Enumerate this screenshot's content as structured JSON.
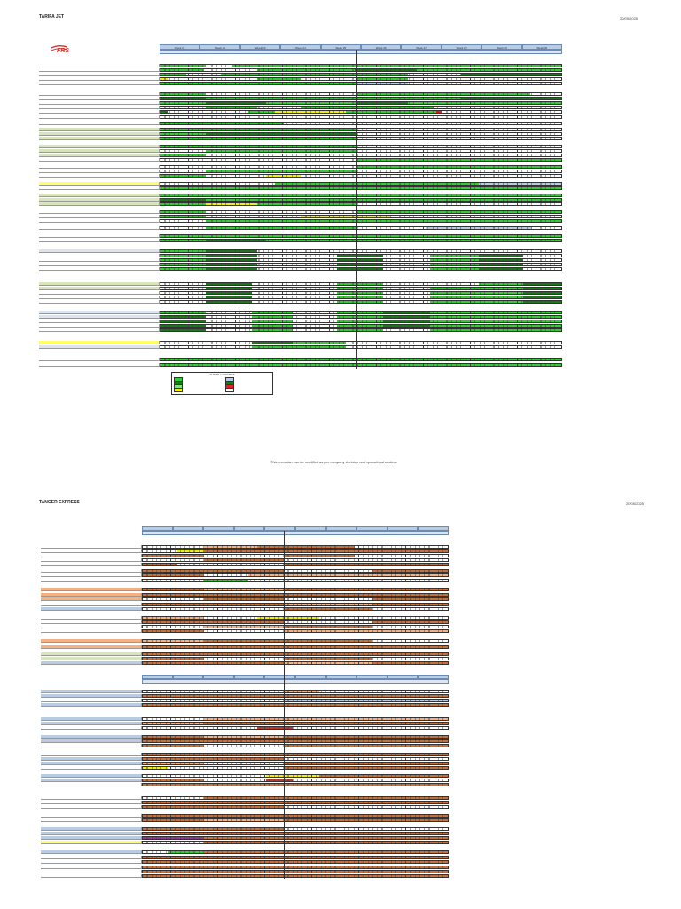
{
  "page1": {
    "title": "TARIFA JET",
    "date": "20/05/2025",
    "logo_text": "FRS",
    "weeks": [
      "Week 21",
      "Week 22",
      "Week 23",
      "Week 24",
      "Week 25",
      "Week 26",
      "Week 27",
      "Week 28",
      "Week 29",
      "Week 30"
    ],
    "legend_title": "SHIFTS / LICENSES",
    "footer_note": "This crewplan can be modified as per company decision and operational matters."
  },
  "page2": {
    "title": "TANGER EXPRESS",
    "date": "20/05/2025"
  },
  "colors": {
    "bright_green": "#33cc33",
    "dark_green": "#1a7a1a",
    "yellow": "#f2f200",
    "brown": "#c8703a",
    "peach": "#f4b183",
    "blue_grey": "#b8cce4",
    "red": "#e02020",
    "purple": "#8e3c8e",
    "light_yellow": "#f7f2a0",
    "row_yellow": "#ffff66"
  }
}
